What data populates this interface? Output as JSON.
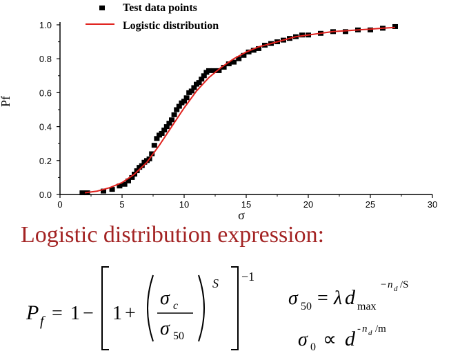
{
  "chart_data": {
    "type": "scatter",
    "xlabel": "σ",
    "ylabel": "Pf",
    "xlim": [
      0,
      30
    ],
    "ylim": [
      0,
      1.0
    ],
    "x_ticks": [
      0,
      5,
      10,
      15,
      20,
      25,
      30
    ],
    "y_ticks": [
      0.0,
      0.2,
      0.4,
      0.6,
      0.8,
      1.0
    ],
    "x_tick_labels": [
      "0",
      "5",
      "10",
      "15",
      "20",
      "25",
      "30"
    ],
    "y_tick_labels": [
      "0.0",
      "0.2",
      "0.4",
      "0.6",
      "0.8",
      "1.0"
    ],
    "legend_position": "top-left",
    "series": [
      {
        "name": "Test data points",
        "kind": "scatter",
        "color": "#000000",
        "x": [
          1.8,
          2.2,
          3.5,
          4.2,
          4.8,
          5.2,
          5.5,
          5.8,
          6.0,
          6.2,
          6.4,
          6.6,
          6.8,
          7.0,
          7.2,
          7.4,
          7.6,
          7.8,
          8.0,
          8.2,
          8.4,
          8.6,
          8.8,
          9.0,
          9.2,
          9.4,
          9.6,
          9.8,
          10.0,
          10.2,
          10.4,
          10.6,
          10.8,
          11.0,
          11.2,
          11.4,
          11.6,
          11.8,
          12.0,
          12.4,
          12.8,
          13.2,
          13.6,
          14.0,
          14.4,
          14.8,
          15.2,
          15.6,
          16.0,
          16.5,
          17.0,
          17.5,
          18.0,
          18.5,
          19.0,
          19.5,
          20.0,
          21.0,
          22.0,
          23.0,
          24.0,
          25.0,
          26.0,
          27.0
        ],
        "y": [
          0.01,
          0.01,
          0.02,
          0.03,
          0.05,
          0.06,
          0.08,
          0.1,
          0.12,
          0.14,
          0.16,
          0.17,
          0.19,
          0.2,
          0.21,
          0.24,
          0.29,
          0.33,
          0.35,
          0.36,
          0.38,
          0.4,
          0.42,
          0.44,
          0.47,
          0.5,
          0.52,
          0.54,
          0.55,
          0.57,
          0.6,
          0.61,
          0.63,
          0.65,
          0.66,
          0.68,
          0.7,
          0.72,
          0.73,
          0.73,
          0.73,
          0.75,
          0.77,
          0.78,
          0.8,
          0.82,
          0.84,
          0.85,
          0.86,
          0.88,
          0.89,
          0.9,
          0.91,
          0.92,
          0.93,
          0.94,
          0.94,
          0.95,
          0.96,
          0.96,
          0.97,
          0.97,
          0.98,
          0.99
        ]
      },
      {
        "name": "Logistic distribution",
        "kind": "line",
        "color": "#e0201c",
        "x": [
          2,
          3,
          4,
          5,
          6,
          7,
          8,
          9,
          10,
          11,
          12,
          13,
          14,
          15,
          16,
          17,
          18,
          19,
          20,
          21,
          22,
          23,
          24,
          25,
          26,
          27
        ],
        "y": [
          0.01,
          0.02,
          0.04,
          0.07,
          0.12,
          0.19,
          0.29,
          0.4,
          0.51,
          0.61,
          0.69,
          0.75,
          0.8,
          0.84,
          0.87,
          0.89,
          0.91,
          0.93,
          0.94,
          0.95,
          0.96,
          0.965,
          0.97,
          0.975,
          0.98,
          0.985
        ]
      }
    ]
  },
  "heading": "Logistic distribution expression:",
  "formulas": {
    "lhs_P": "P",
    "lhs_sub": "f",
    "eq": "=",
    "one": "1",
    "minus": "−",
    "one_inner": "1",
    "plus": "+",
    "frac_num": "σ",
    "frac_num_sub": "c",
    "frac_den": "σ",
    "frac_den_sub": "50",
    "exp_S": "S",
    "exp_neg1": "−1",
    "f2_sigma": "σ",
    "f2_sub": "50",
    "f2_eq": "=",
    "f2_lambda": "λ",
    "f2_d": "d",
    "f2_max": "max",
    "f2_exp_neg": "−",
    "f2_exp_n": "n",
    "f2_exp_nsub": "d",
    "f2_exp_tail": "/S",
    "f3_sigma": "σ",
    "f3_sub": "0",
    "f3_prop": "∝",
    "f3_d": "d",
    "f3_exp_neg": "-",
    "f3_exp_n": "n",
    "f3_exp_nsub": "d",
    "f3_exp_tail": "/m"
  }
}
